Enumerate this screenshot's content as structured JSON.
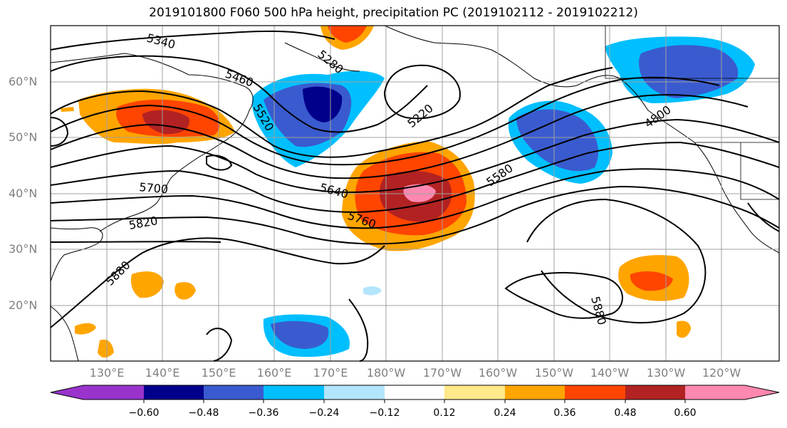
{
  "title": "2019101800 F060 500 hPa height, precipitation PC (2019102112 - 2019102212)",
  "lat_labels": [
    "60°N",
    "50°N",
    "40°N",
    "30°N",
    "20°N"
  ],
  "lon_labels": [
    "130°E",
    "140°E",
    "150°E",
    "160°E",
    "170°E",
    "180°W",
    "170°W",
    "160°W",
    "150°W",
    "140°W",
    "130°W",
    "120°W"
  ],
  "contour_labels": [
    "5340",
    "5280",
    "5460",
    "5520",
    "5220",
    "4800",
    "5700",
    "5640",
    "5580",
    "5820",
    "5760",
    "5880",
    "5880"
  ],
  "colorbar": {
    "colors": [
      "#9933cc",
      "#00008b",
      "#3a5bcf",
      "#00bfff",
      "#b3e5fc",
      "#ffffff",
      "#ffe98a",
      "#ffa500",
      "#ff4500",
      "#b22222",
      "#ff88b0"
    ],
    "tick_labels": [
      "−0.60",
      "−0.48",
      "−0.36",
      "−0.24",
      "−0.12",
      "0.12",
      "0.24",
      "0.36",
      "0.48",
      "0.60"
    ]
  }
}
